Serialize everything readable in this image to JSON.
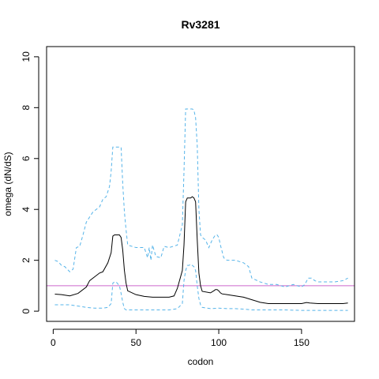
{
  "chart_data": {
    "type": "line",
    "title": "Rv3281",
    "xlabel": "codon",
    "ylabel": "omega (dN/dS)",
    "xlim": [
      -4,
      182
    ],
    "ylim": [
      -0.4,
      10.4
    ],
    "xticks": [
      0,
      50,
      100,
      150
    ],
    "yticks": [
      0,
      2,
      4,
      6,
      8,
      10
    ],
    "reference_line": {
      "y": 1,
      "color": "#cc66cc"
    },
    "grid": false,
    "legend": "none",
    "series": [
      {
        "role": "mean",
        "color": "#000000",
        "dash": "solid",
        "x": [
          1,
          5,
          10,
          15,
          20,
          22,
          25,
          28,
          30,
          33,
          35,
          36,
          37,
          38,
          40,
          41,
          42,
          43,
          44,
          45,
          50,
          55,
          60,
          65,
          70,
          73,
          75,
          78,
          79,
          80,
          81,
          82,
          83,
          84,
          85,
          86,
          87,
          88,
          89,
          90,
          95,
          97,
          98,
          99,
          100,
          101,
          102,
          105,
          110,
          115,
          120,
          125,
          130,
          140,
          150,
          153,
          155,
          160,
          165,
          170,
          175,
          178
        ],
        "y": [
          0.67,
          0.65,
          0.6,
          0.7,
          0.95,
          1.2,
          1.35,
          1.5,
          1.55,
          1.9,
          2.3,
          2.95,
          3.0,
          3.0,
          3.0,
          2.9,
          2.4,
          1.6,
          1.1,
          0.8,
          0.65,
          0.58,
          0.55,
          0.55,
          0.55,
          0.6,
          0.9,
          1.6,
          2.6,
          4.3,
          4.45,
          4.45,
          4.45,
          4.5,
          4.45,
          4.3,
          2.8,
          1.5,
          1.0,
          0.78,
          0.72,
          0.8,
          0.85,
          0.85,
          0.8,
          0.72,
          0.68,
          0.65,
          0.6,
          0.55,
          0.45,
          0.35,
          0.3,
          0.3,
          0.3,
          0.34,
          0.32,
          0.3,
          0.3,
          0.3,
          0.3,
          0.32
        ]
      },
      {
        "role": "upper",
        "color": "#56b4e9",
        "dash": "dashed",
        "x": [
          1,
          3,
          5,
          7,
          10,
          12,
          14,
          16,
          18,
          20,
          22,
          24,
          26,
          28,
          30,
          32,
          34,
          35,
          36,
          37,
          38,
          40,
          41,
          42,
          43,
          44,
          45,
          50,
          55,
          56,
          57,
          58,
          59,
          60,
          62,
          65,
          67,
          70,
          75,
          78,
          79,
          80,
          81,
          82,
          83,
          84,
          85,
          86,
          87,
          88,
          89,
          90,
          92,
          94,
          96,
          98,
          99,
          100,
          101,
          103,
          105,
          110,
          115,
          118,
          120,
          125,
          130,
          135,
          140,
          145,
          150,
          152,
          154,
          156,
          158,
          160,
          165,
          170,
          175,
          178
        ],
        "y": [
          2.0,
          1.95,
          1.8,
          1.75,
          1.55,
          1.65,
          2.5,
          2.55,
          3.0,
          3.5,
          3.7,
          3.9,
          4.0,
          4.1,
          4.4,
          4.5,
          4.9,
          5.5,
          6.45,
          6.45,
          6.45,
          6.45,
          6.45,
          5.0,
          3.9,
          3.2,
          2.6,
          2.5,
          2.5,
          2.3,
          2.1,
          2.5,
          2.0,
          2.6,
          2.15,
          2.1,
          2.55,
          2.5,
          2.6,
          3.4,
          5.5,
          7.95,
          7.95,
          7.95,
          7.95,
          7.95,
          7.9,
          7.6,
          6.5,
          4.0,
          3.0,
          2.9,
          2.8,
          2.5,
          2.8,
          3.0,
          3.0,
          2.9,
          2.6,
          2.1,
          2.0,
          2.0,
          1.9,
          1.75,
          1.3,
          1.15,
          1.05,
          1.05,
          0.95,
          1.05,
          0.95,
          1.05,
          1.3,
          1.3,
          1.2,
          1.15,
          1.15,
          1.15,
          1.2,
          1.3
        ]
      },
      {
        "role": "lower",
        "color": "#56b4e9",
        "dash": "dashed",
        "x": [
          1,
          5,
          10,
          15,
          20,
          25,
          30,
          33,
          35,
          36,
          37,
          38,
          40,
          41,
          42,
          43,
          44,
          45,
          50,
          60,
          70,
          75,
          78,
          79,
          80,
          81,
          82,
          83,
          84,
          85,
          86,
          87,
          88,
          89,
          90,
          95,
          100,
          105,
          110,
          115,
          120,
          125,
          130,
          140,
          150,
          160,
          170,
          178
        ],
        "y": [
          0.25,
          0.25,
          0.25,
          0.2,
          0.15,
          0.12,
          0.12,
          0.15,
          0.3,
          1.1,
          1.15,
          1.15,
          1.0,
          0.7,
          0.35,
          0.1,
          0.05,
          0.05,
          0.05,
          0.05,
          0.05,
          0.1,
          0.3,
          1.2,
          1.6,
          1.8,
          1.8,
          1.85,
          1.8,
          1.75,
          1.6,
          1.0,
          0.5,
          0.25,
          0.15,
          0.1,
          0.12,
          0.1,
          0.1,
          0.08,
          0.05,
          0.05,
          0.05,
          0.05,
          0.03,
          0.03,
          0.03,
          0.03
        ]
      }
    ]
  }
}
